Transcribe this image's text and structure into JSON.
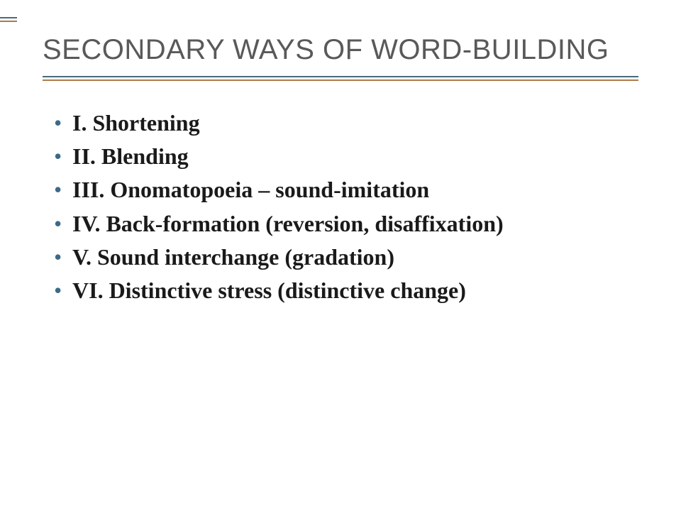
{
  "slide": {
    "title": "SECONDARY WAYS OF WORD-BUILDING",
    "title_color": "#595959",
    "title_fontsize": 40,
    "bullet_color": "#3b6a88",
    "text_color": "#1a1a1a",
    "body_fontsize": 32,
    "rule_colors": {
      "top": "#4a6a7a",
      "bottom": "#b07a4a"
    },
    "background_color": "#ffffff",
    "items": [
      {
        "text": "I. Shortening"
      },
      {
        "text": "II. Blending"
      },
      {
        "text": "III. Onomatopoeia – sound-imitation"
      },
      {
        "text": "IV. Back-formation (reversion, disaffixation)"
      },
      {
        "text": "V. Sound interchange (gradation)"
      },
      {
        "text": "VI. Distinctive stress (distinctive change)"
      }
    ]
  }
}
